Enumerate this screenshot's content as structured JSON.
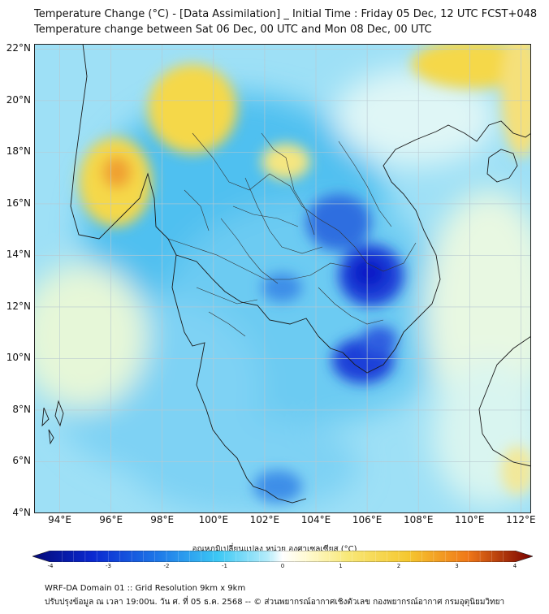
{
  "title": {
    "line1": "Temperature Change (°C) - [Data Assimilation] _ Initial Time : Friday 05 Dec, 12 UTC FCST+048",
    "line2": "Temperature change between Sat 06 Dec, 00 UTC and Mon 08 Dec, 00 UTC"
  },
  "map": {
    "lat_labels": [
      "22°N",
      "20°N",
      "18°N",
      "16°N",
      "14°N",
      "12°N",
      "10°N",
      "8°N",
      "6°N",
      "4°N"
    ],
    "lon_labels": [
      "94°E",
      "96°E",
      "98°E",
      "100°E",
      "102°E",
      "104°E",
      "106°E",
      "108°E",
      "110°E",
      "112°E"
    ],
    "lat_range": [
      4,
      22.2
    ],
    "lon_range": [
      93,
      112.4
    ]
  },
  "colorbar": {
    "title": "อุณหภูมิเปลี่ยนแปลง หน่วย องศาเซลเซียส (°C)",
    "ticks": [
      "-4",
      "-3",
      "-2",
      "-1",
      "0",
      "1",
      "2",
      "3",
      "4"
    ],
    "range": [
      -4,
      4
    ]
  },
  "footer": {
    "line1": "WRF-DA Domain 01 :: Grid Resolution 9km x 9km",
    "line2": "ปรับปรุงข้อมูล ณ เวลา 19:00น. วัน ศ. ที่ 05 ธ.ค. 2568 -- © ส่วนพยากรณ์อากาศเชิงตัวเลข กองพยากรณ์อากาศ กรมอุตุนิยมวิทยา"
  },
  "colors": {
    "strong_cool": "#1428d2",
    "cool": "#3cb4f0",
    "light_cool": "#c8f0fa",
    "warm": "#f5d23c",
    "hot": "#f08c1e"
  }
}
